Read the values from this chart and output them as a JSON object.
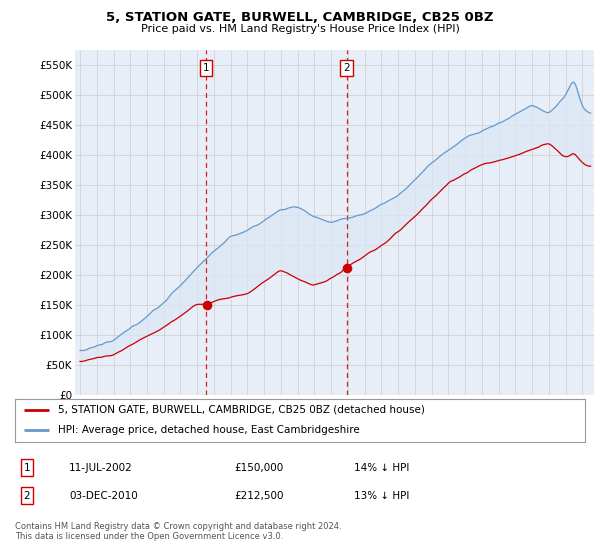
{
  "title": "5, STATION GATE, BURWELL, CAMBRIDGE, CB25 0BZ",
  "subtitle": "Price paid vs. HM Land Registry's House Price Index (HPI)",
  "legend_line1": "5, STATION GATE, BURWELL, CAMBRIDGE, CB25 0BZ (detached house)",
  "legend_line2": "HPI: Average price, detached house, East Cambridgeshire",
  "footer": "Contains HM Land Registry data © Crown copyright and database right 2024.\nThis data is licensed under the Open Government Licence v3.0.",
  "sale1_date": "11-JUL-2002",
  "sale1_price": "£150,000",
  "sale1_hpi": "14% ↓ HPI",
  "sale1_year": 2002.53,
  "sale1_value": 150000,
  "sale2_date": "03-DEC-2010",
  "sale2_price": "£212,500",
  "sale2_hpi": "13% ↓ HPI",
  "sale2_year": 2010.92,
  "sale2_value": 212500,
  "ylim": [
    0,
    575000
  ],
  "yticks": [
    0,
    50000,
    100000,
    150000,
    200000,
    250000,
    300000,
    350000,
    400000,
    450000,
    500000,
    550000
  ],
  "ytick_labels": [
    "£0",
    "£50K",
    "£100K",
    "£150K",
    "£200K",
    "£250K",
    "£300K",
    "£350K",
    "£400K",
    "£450K",
    "£500K",
    "£550K"
  ],
  "red_color": "#cc0000",
  "blue_color": "#6699cc",
  "fill_color": "#dce8f5",
  "bg_color": "#e8eef7",
  "plot_bg": "#ffffff",
  "grid_color": "#cccccc",
  "vline_color": "#cc0000",
  "xmin": 1994.7,
  "xmax": 2025.7
}
